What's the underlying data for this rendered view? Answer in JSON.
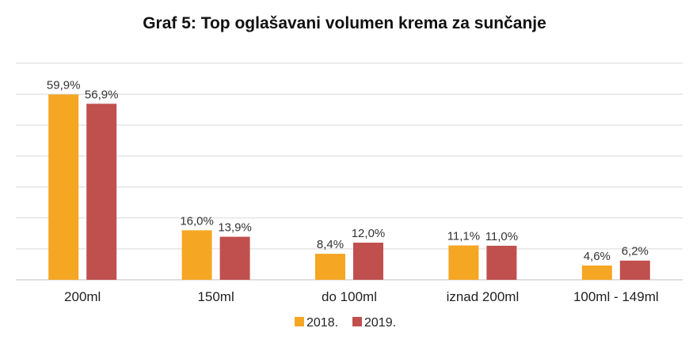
{
  "chart_data": {
    "type": "bar",
    "title": "Graf 5: Top oglašavani volumen krema za sunčanje",
    "xlabel": "",
    "ylabel": "",
    "categories": [
      "200ml",
      "150ml",
      "do 100ml",
      "iznad 200ml",
      "100ml - 149ml"
    ],
    "series": [
      {
        "name": "2018.",
        "color": "#F5A623",
        "values": [
          59.9,
          16.0,
          8.4,
          11.1,
          4.6
        ],
        "labels": [
          "59,9%",
          "16,0%",
          "8,4%",
          "11,1%",
          "4,6%"
        ]
      },
      {
        "name": "2019.",
        "color": "#C0504D",
        "values": [
          56.9,
          13.9,
          12.0,
          11.0,
          6.2
        ],
        "labels": [
          "56,9%",
          "13,9%",
          "12,0%",
          "11,0%",
          "6,2%"
        ]
      }
    ],
    "ylim": [
      0,
      70
    ],
    "grid": true,
    "legend_position": "bottom"
  }
}
